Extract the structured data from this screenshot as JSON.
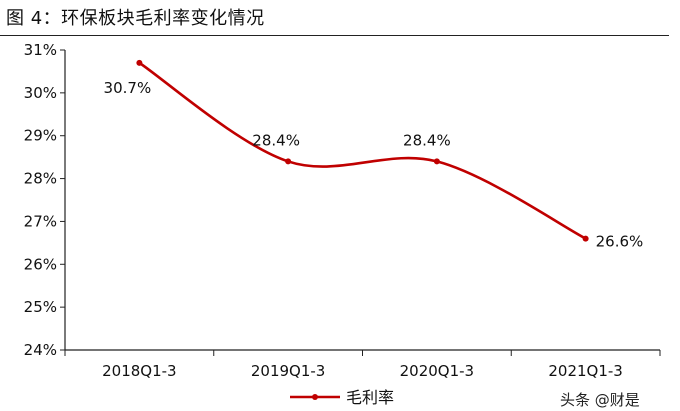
{
  "figure": {
    "title": "图 4：环保板块毛利率变化情况",
    "watermark": "头条 @财是"
  },
  "chart_data": {
    "type": "line",
    "categories": [
      "2018Q1-3",
      "2019Q1-3",
      "2020Q1-3",
      "2021Q1-3"
    ],
    "series": [
      {
        "name": "毛利率",
        "values": [
          30.7,
          28.4,
          28.4,
          26.6
        ],
        "labels": [
          "30.7%",
          "28.4%",
          "28.4%",
          "26.6%"
        ],
        "color": "#c00000"
      }
    ],
    "ylim": [
      24,
      31
    ],
    "yticks": [
      "24%",
      "25%",
      "26%",
      "27%",
      "28%",
      "29%",
      "30%",
      "31%"
    ],
    "xlabel": "",
    "ylabel": "",
    "grid": false,
    "legend_position": "bottom-center",
    "smooth": true
  }
}
